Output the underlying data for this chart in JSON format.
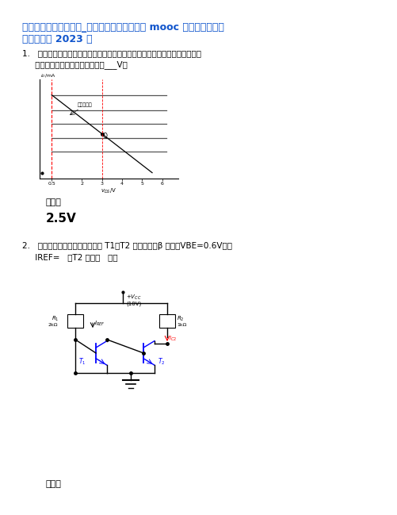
{
  "title_line1": "计算机网络基础及应用_南京理工大学中国大学 mooc 课后章节答案期",
  "title_line2": "末考试题库 2023 年",
  "title_color": "#1155CC",
  "bg_color": "#ffffff",
  "q1_line1": "1.   已知某基本共源极放大电路的输出特性曲线和交流负载线如图所示，则此电",
  "q1_line2": "     路最大不失真输出电压的幅值是___V。",
  "answer_label": "答案：",
  "answer_val": "2.5V",
  "q2_line1": "2.   下图所示恒流源电路中，已知 T1、T2 特性相同，β 很大，VBE=0.6V，则",
  "q2_line2": "     IREF=   ，T2 工作在   区。",
  "answer2_label": "答案："
}
